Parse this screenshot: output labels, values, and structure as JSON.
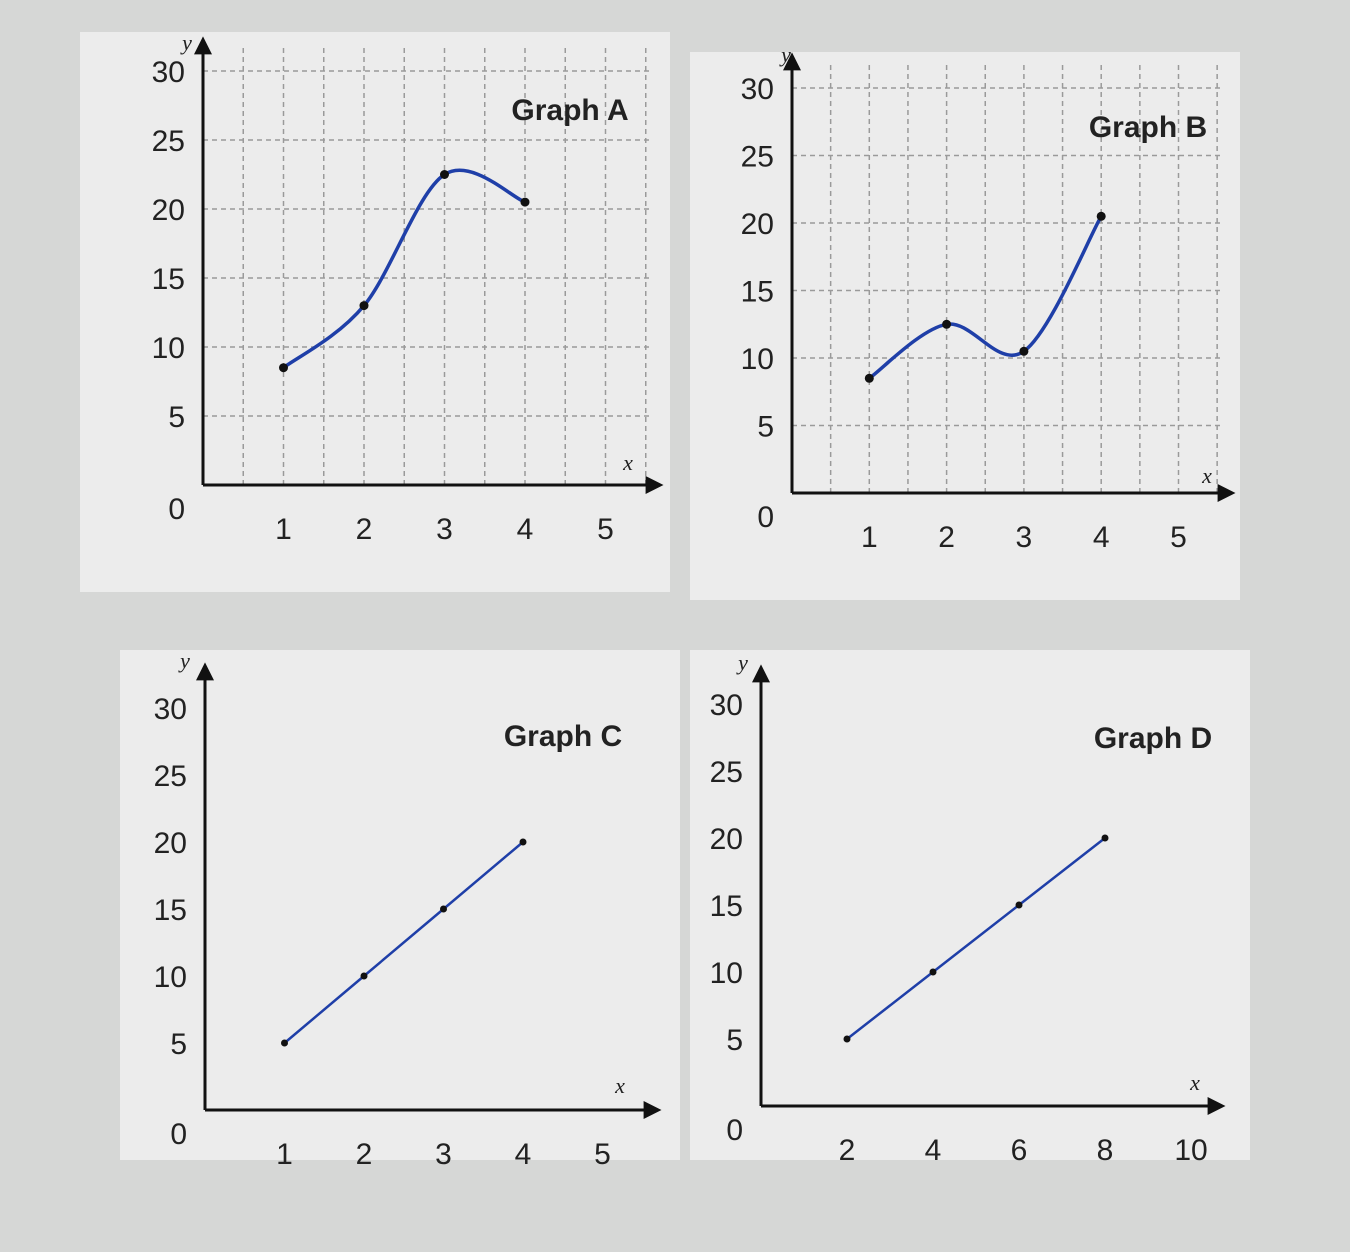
{
  "chart_data": [
    {
      "type": "line",
      "title": "Graph A",
      "xlabel": "x",
      "ylabel": "y",
      "x": [
        1,
        2,
        3,
        4
      ],
      "series": [
        {
          "values": [
            8.5,
            13,
            22.5,
            20.5
          ]
        }
      ],
      "xticks": [
        "1",
        "2",
        "3",
        "4",
        "5"
      ],
      "yticks": [
        "0",
        "5",
        "10",
        "15",
        "20",
        "25",
        "30"
      ],
      "xlim": [
        0,
        5.6
      ],
      "ylim": [
        0,
        30.5
      ],
      "grid": true,
      "smooth": true
    },
    {
      "type": "line",
      "title": "Graph B",
      "xlabel": "x",
      "ylabel": "y",
      "x": [
        1,
        2,
        3,
        4
      ],
      "series": [
        {
          "values": [
            8.5,
            12.5,
            10.5,
            20.5
          ]
        }
      ],
      "xticks": [
        "1",
        "2",
        "3",
        "4",
        "5"
      ],
      "yticks": [
        "0",
        "5",
        "10",
        "15",
        "20",
        "25",
        "30"
      ],
      "xlim": [
        0,
        5.6
      ],
      "ylim": [
        0,
        30.5
      ],
      "grid": true,
      "smooth": true
    },
    {
      "type": "line",
      "title": "Graph C",
      "xlabel": "x",
      "ylabel": "y",
      "x": [
        1,
        2,
        3,
        4
      ],
      "series": [
        {
          "values": [
            5,
            10,
            15,
            20
          ]
        }
      ],
      "xticks": [
        "1",
        "2",
        "3",
        "4",
        "5"
      ],
      "yticks": [
        "0",
        "5",
        "10",
        "15",
        "20",
        "25",
        "30"
      ],
      "xlim": [
        0,
        5.6
      ],
      "ylim": [
        0,
        30.5
      ],
      "grid": false,
      "smooth": false
    },
    {
      "type": "line",
      "title": "Graph D",
      "xlabel": "x",
      "ylabel": "y",
      "x": [
        2,
        4,
        6,
        8
      ],
      "series": [
        {
          "values": [
            5,
            10,
            15,
            20
          ]
        }
      ],
      "xticks": [
        "2",
        "4",
        "6",
        "8",
        "10"
      ],
      "yticks": [
        "0",
        "5",
        "10",
        "15",
        "20",
        "25",
        "30"
      ],
      "xlim": [
        0,
        11.2
      ],
      "ylim": [
        0,
        30.5
      ],
      "grid": false,
      "smooth": false
    }
  ],
  "colors": {
    "background": "#d6d7d6",
    "panel": "#ececec",
    "line": "#1f3fa8",
    "axis": "#111111",
    "grid": "#9a9a9a",
    "text": "#222222"
  }
}
